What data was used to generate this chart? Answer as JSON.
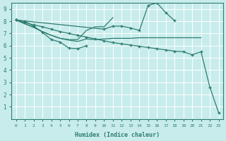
{
  "xlabel": "Humidex (Indice chaleur)",
  "bg_color": "#c8ecec",
  "grid_color": "#ffffff",
  "line_color": "#2e7d6e",
  "xlim": [
    -0.5,
    23.5
  ],
  "ylim": [
    0,
    9.5
  ],
  "xticks": [
    0,
    1,
    2,
    3,
    4,
    5,
    6,
    7,
    8,
    9,
    10,
    11,
    12,
    13,
    14,
    15,
    16,
    17,
    18,
    19,
    20,
    21,
    22,
    23
  ],
  "yticks": [
    1,
    2,
    3,
    4,
    5,
    6,
    7,
    8,
    9
  ],
  "line1_x": [
    0,
    1,
    2,
    3,
    4,
    5,
    6,
    7,
    8
  ],
  "line1_y": [
    8.1,
    8.0,
    7.6,
    7.1,
    6.5,
    6.3,
    5.8,
    5.75,
    6.0
  ],
  "line2_x": [
    0,
    2,
    3,
    4,
    5,
    6,
    7,
    8,
    9,
    10,
    11,
    12,
    13,
    14,
    15,
    16,
    17,
    18,
    19,
    20,
    21
  ],
  "line2_y": [
    8.1,
    7.5,
    7.15,
    6.85,
    6.6,
    6.45,
    6.35,
    6.55,
    6.5,
    6.55,
    6.6,
    6.6,
    6.6,
    6.65,
    6.65,
    6.65,
    6.65,
    6.65,
    6.65,
    6.65,
    6.65
  ],
  "line3_x": [
    0,
    2,
    3,
    4,
    5,
    6,
    7,
    8,
    9,
    10,
    11
  ],
  "line3_y": [
    8.1,
    7.5,
    7.15,
    6.85,
    6.6,
    6.5,
    6.5,
    7.25,
    7.55,
    7.55,
    8.3
  ],
  "line4_x": [
    0,
    10,
    11,
    12,
    13,
    14,
    15,
    16,
    17,
    18
  ],
  "line4_y": [
    8.1,
    7.35,
    7.6,
    7.6,
    7.45,
    7.25,
    9.3,
    9.5,
    8.7,
    8.05
  ],
  "line5_x": [
    0,
    1,
    2,
    3,
    4,
    5,
    6,
    7,
    8,
    9,
    10,
    11,
    12,
    13,
    14,
    15,
    16,
    17,
    18,
    19,
    20,
    21,
    22,
    23
  ],
  "line5_y": [
    8.1,
    7.9,
    7.7,
    7.55,
    7.35,
    7.15,
    7.0,
    6.85,
    6.7,
    6.55,
    6.4,
    6.25,
    6.15,
    6.05,
    5.95,
    5.85,
    5.75,
    5.65,
    5.55,
    5.5,
    5.25,
    5.5,
    2.6,
    0.5
  ]
}
